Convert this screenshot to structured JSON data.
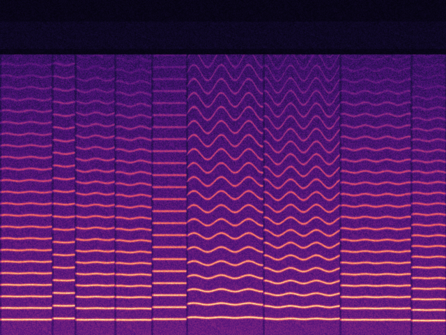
{
  "image": {
    "kind": "spectrogram",
    "colormap": [
      "#000004",
      "#1c1044",
      "#4f127b",
      "#812581",
      "#b5367a",
      "#e55064",
      "#fb8761",
      "#fec287",
      "#fcfdbf"
    ]
  }
}
